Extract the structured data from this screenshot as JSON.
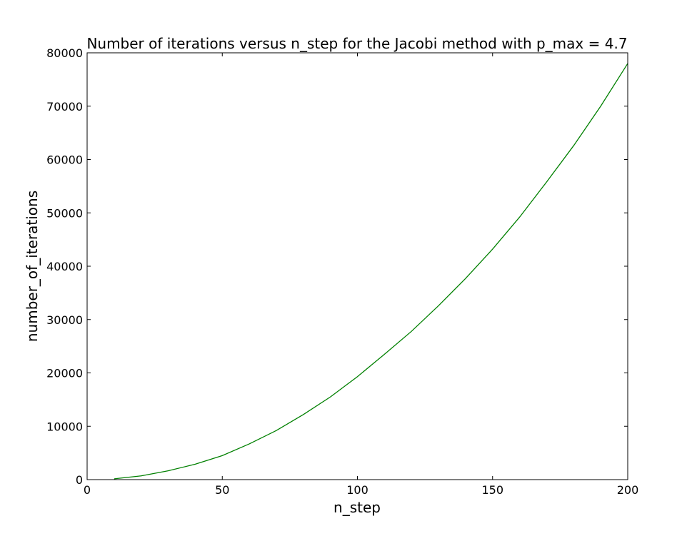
{
  "chart_data": {
    "type": "line",
    "title": "Number of iterations versus n_step for the Jacobi method with p_max = 4.7",
    "xlabel": "n_step",
    "ylabel": "number_of_iterations",
    "xlim": [
      0,
      200
    ],
    "ylim": [
      0,
      80000
    ],
    "xticks": [
      0,
      50,
      100,
      150,
      200
    ],
    "yticks": [
      0,
      10000,
      20000,
      30000,
      40000,
      50000,
      60000,
      70000,
      80000
    ],
    "xtick_labels": [
      "0",
      "50",
      "100",
      "150",
      "200"
    ],
    "ytick_labels": [
      "0",
      "10000",
      "20000",
      "30000",
      "40000",
      "50000",
      "60000",
      "70000",
      "80000"
    ],
    "grid": false,
    "series": [
      {
        "color": "#008000",
        "x": [
          10,
          20,
          30,
          40,
          50,
          60,
          70,
          80,
          90,
          100,
          110,
          120,
          130,
          140,
          150,
          160,
          170,
          180,
          190,
          200
        ],
        "y": [
          150,
          700,
          1650,
          2900,
          4500,
          6700,
          9200,
          12200,
          15500,
          19300,
          23500,
          27800,
          32600,
          37700,
          43200,
          49200,
          55800,
          62600,
          70000,
          78000
        ]
      }
    ]
  }
}
